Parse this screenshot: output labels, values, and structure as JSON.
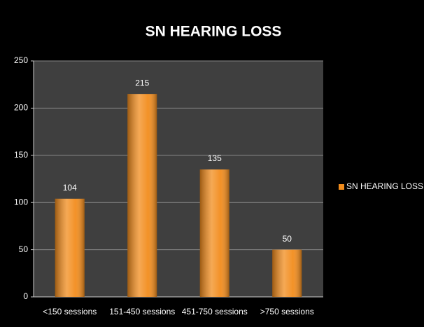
{
  "chart_data": {
    "type": "bar",
    "title": "SN HEARING LOSS",
    "categories": [
      "<150 sessions",
      "151-450 sessions",
      "451-750 sessions",
      ">750 sessions"
    ],
    "series": [
      {
        "name": "SN HEARING LOSS",
        "color": "#f28c1c",
        "values": [
          104,
          215,
          135,
          50
        ]
      }
    ],
    "ylim": [
      0,
      250
    ],
    "yticks": [
      0,
      50,
      100,
      150,
      200,
      250
    ],
    "grid": true,
    "legend": "right"
  }
}
